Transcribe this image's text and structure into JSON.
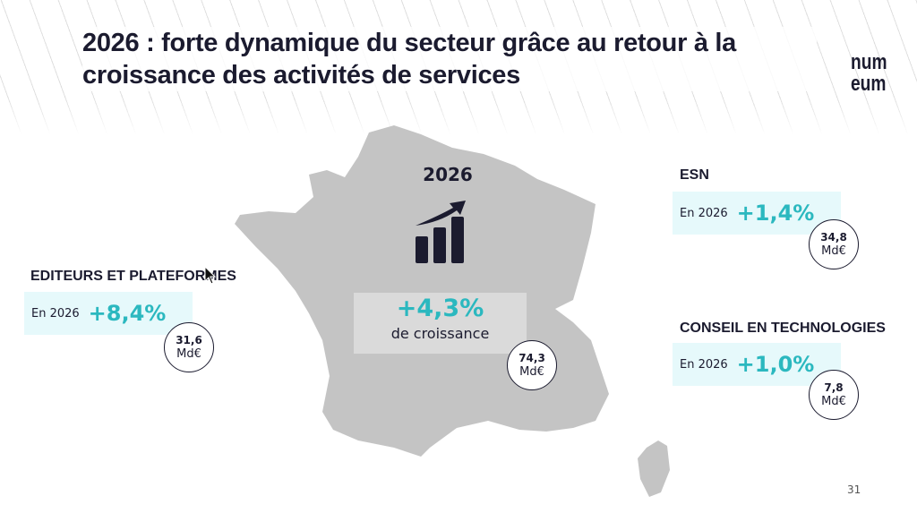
{
  "title": "2026 : forte dynamique du secteur grâce au retour à la croissance des activités de services",
  "logo": {
    "line1": "num",
    "line2": "eum"
  },
  "center": {
    "year": "2026",
    "growth": "+4,3%",
    "growth_label": "de croissance",
    "value": "74,3",
    "unit": "Md€"
  },
  "sectors": [
    {
      "name": "EDITEURS ET PLATEFORMES",
      "year_label": "En 2026",
      "growth": "+8,4%",
      "value": "31,6",
      "unit": "Md€"
    },
    {
      "name": "ESN",
      "year_label": "En 2026",
      "growth": "+1,4%",
      "value": "34,8",
      "unit": "Md€"
    },
    {
      "name": "CONSEIL EN TECHNOLOGIES",
      "year_label": "En 2026",
      "growth": "+1,0%",
      "value": "7,8",
      "unit": "Md€"
    }
  ],
  "page_number": "31",
  "colors": {
    "accent": "#2bb8bf",
    "dark": "#1b1b2f",
    "map": "#c4c4c4",
    "box": "#e6f9fb"
  }
}
